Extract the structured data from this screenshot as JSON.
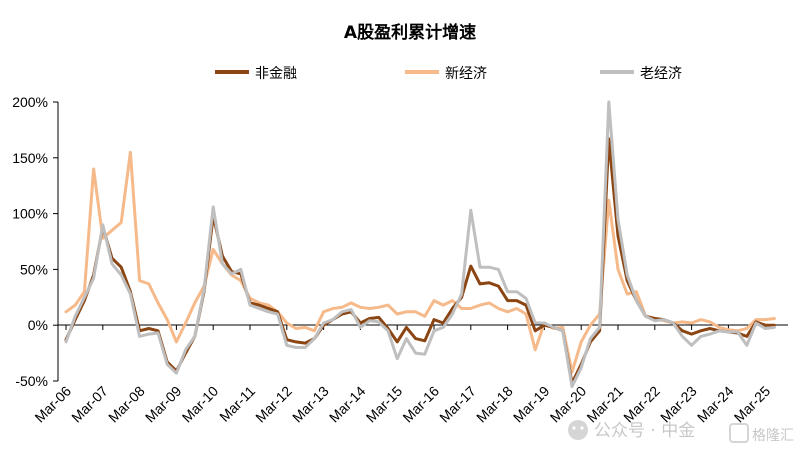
{
  "chart_data": {
    "type": "line",
    "title": "A股盈利累计增速",
    "xlabel": "",
    "ylabel": "",
    "ylim": [
      -50,
      200
    ],
    "yticks": [
      "200%",
      "150%",
      "100%",
      "50%",
      "0%",
      "-50%"
    ],
    "ytick_values": [
      200,
      150,
      100,
      50,
      0,
      -50
    ],
    "x_tick_labels": [
      "Mar-06",
      "Mar-07",
      "Mar-08",
      "Mar-09",
      "Mar-10",
      "Mar-11",
      "Mar-12",
      "Mar-13",
      "Mar-14",
      "Mar-15",
      "Mar-16",
      "Mar-17",
      "Mar-18",
      "Mar-19",
      "Mar-20",
      "Mar-21",
      "Mar-22",
      "Mar-23",
      "Mar-24",
      "Mar-25"
    ],
    "x_start": 2006.0,
    "x_step": 0.25,
    "legend_position": "top",
    "grid": false,
    "series": [
      {
        "name": "非金融",
        "color": "#8B4513",
        "values": [
          -13,
          5,
          22,
          45,
          88,
          60,
          52,
          30,
          -5,
          -3,
          -5,
          -33,
          -41,
          -25,
          -10,
          30,
          98,
          62,
          48,
          46,
          20,
          18,
          15,
          12,
          -13,
          -15,
          -16,
          -12,
          0,
          5,
          10,
          12,
          2,
          6,
          7,
          -3,
          -15,
          -2,
          -12,
          -14,
          5,
          2,
          15,
          25,
          53,
          37,
          38,
          35,
          22,
          22,
          18,
          -5,
          0,
          -2,
          -5,
          -52,
          -35,
          -15,
          -5,
          167,
          80,
          40,
          22,
          8,
          6,
          5,
          2,
          -5,
          -8,
          -5,
          -3,
          -5,
          -6,
          -7,
          -10,
          3,
          0,
          0
        ]
      },
      {
        "name": "新经济",
        "color": "#F5B98A",
        "values": [
          12,
          18,
          30,
          140,
          78,
          85,
          92,
          155,
          40,
          37,
          20,
          5,
          -15,
          2,
          20,
          35,
          68,
          55,
          45,
          40,
          24,
          20,
          18,
          12,
          2,
          -3,
          -2,
          -5,
          12,
          15,
          16,
          20,
          16,
          15,
          16,
          18,
          10,
          12,
          12,
          8,
          22,
          18,
          22,
          15,
          15,
          18,
          20,
          15,
          12,
          15,
          10,
          -22,
          2,
          -3,
          -2,
          -42,
          -15,
          0,
          10,
          112,
          50,
          28,
          30,
          8,
          6,
          4,
          2,
          3,
          2,
          5,
          3,
          -2,
          -4,
          -5,
          -3,
          5,
          5,
          6
        ]
      },
      {
        "name": "老经济",
        "color": "#BFBFBF",
        "values": [
          -15,
          8,
          25,
          42,
          90,
          55,
          45,
          28,
          -10,
          -8,
          -7,
          -35,
          -43,
          -22,
          -10,
          32,
          106,
          55,
          46,
          50,
          18,
          15,
          12,
          10,
          -18,
          -20,
          -20,
          -12,
          2,
          5,
          12,
          14,
          -2,
          4,
          3,
          -5,
          -30,
          -12,
          -25,
          -26,
          -5,
          -2,
          10,
          28,
          103,
          52,
          52,
          50,
          30,
          30,
          24,
          2,
          2,
          -2,
          -5,
          -55,
          -38,
          -12,
          -2,
          200,
          95,
          45,
          22,
          8,
          4,
          5,
          2,
          -10,
          -18,
          -10,
          -8,
          -5,
          -6,
          -6,
          -18,
          2,
          -3,
          -2
        ]
      }
    ]
  },
  "watermark": {
    "text1": "公众号 · 中金",
    "text2": "格隆汇"
  }
}
